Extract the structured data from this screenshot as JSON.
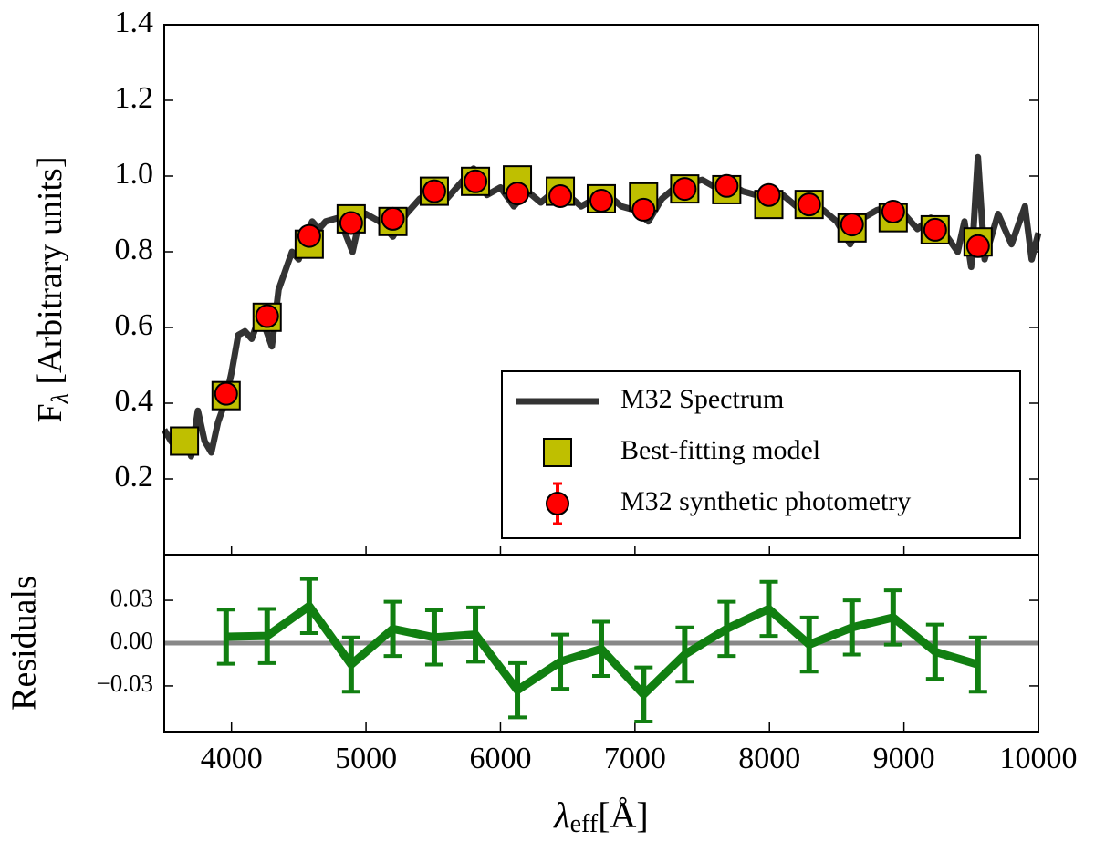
{
  "chart_data": [
    {
      "type": "combo",
      "ylabel_parts": [
        "F",
        "λ",
        " [Arbitrary units]"
      ],
      "xlim": [
        3500,
        10000
      ],
      "ylim": [
        0,
        1.4
      ],
      "yticks": [
        0.2,
        0.4,
        0.6,
        0.8,
        {
          "value": 1,
          "label": "1.0"
        },
        1.2,
        1.4
      ],
      "legend": "lower right",
      "series": [
        {
          "name": "M32 Spectrum",
          "color": "#333333",
          "kind": "line",
          "x": [
            3500,
            3550,
            3600,
            3650,
            3700,
            3750,
            3800,
            3850,
            3900,
            3950,
            4000,
            4050,
            4100,
            4150,
            4200,
            4250,
            4300,
            4350,
            4400,
            4450,
            4500,
            4550,
            4600,
            4650,
            4700,
            4800,
            4900,
            4950,
            5000,
            5100,
            5200,
            5300,
            5400,
            5500,
            5600,
            5700,
            5800,
            5900,
            6000,
            6100,
            6200,
            6300,
            6400,
            6500,
            6600,
            6700,
            6800,
            6900,
            7000,
            7100,
            7200,
            7300,
            7400,
            7500,
            7600,
            7700,
            7800,
            7900,
            8000,
            8100,
            8200,
            8300,
            8400,
            8500,
            8600,
            8700,
            8800,
            8900,
            9000,
            9100,
            9200,
            9300,
            9400,
            9450,
            9500,
            9550,
            9600,
            9700,
            9800,
            9900,
            9950,
            10000
          ],
          "values": [
            0.33,
            0.3,
            0.28,
            0.33,
            0.26,
            0.38,
            0.3,
            0.27,
            0.35,
            0.4,
            0.48,
            0.58,
            0.59,
            0.57,
            0.62,
            0.6,
            0.55,
            0.7,
            0.75,
            0.8,
            0.78,
            0.84,
            0.88,
            0.86,
            0.88,
            0.89,
            0.8,
            0.88,
            0.9,
            0.88,
            0.84,
            0.9,
            0.94,
            0.96,
            0.94,
            0.98,
            1.02,
            0.95,
            0.97,
            0.92,
            0.96,
            0.93,
            0.96,
            0.95,
            0.92,
            0.94,
            0.95,
            0.92,
            0.91,
            0.88,
            0.94,
            0.97,
            0.98,
            0.99,
            0.97,
            0.98,
            0.96,
            0.95,
            0.94,
            0.95,
            0.92,
            0.93,
            0.91,
            0.88,
            0.82,
            0.89,
            0.91,
            0.92,
            0.9,
            0.86,
            0.89,
            0.85,
            0.8,
            0.88,
            0.76,
            1.05,
            0.78,
            0.9,
            0.82,
            0.92,
            0.78,
            0.85
          ]
        },
        {
          "name": "Best-fitting model",
          "color": "#bfbf00",
          "kind": "square",
          "x": [
            3650,
            3960,
            4265,
            4578,
            4890,
            5200,
            5508,
            5814,
            6126,
            6445,
            6750,
            7064,
            7370,
            7682,
            7995,
            8295,
            8614,
            8920,
            9232,
            9551
          ],
          "values": [
            0.3,
            0.42,
            0.627,
            0.82,
            0.887,
            0.88,
            0.96,
            0.986,
            0.99,
            0.96,
            0.94,
            0.945,
            0.966,
            0.964,
            0.925,
            0.925,
            0.863,
            0.89,
            0.858,
            0.826
          ]
        },
        {
          "name": "M32 synthetic photometry",
          "color": "#ff0000",
          "kind": "circle",
          "x": [
            3960,
            4265,
            4578,
            4890,
            5200,
            5508,
            5814,
            6126,
            6445,
            6750,
            7064,
            7370,
            7682,
            7995,
            8295,
            8614,
            8920,
            9232,
            9551
          ],
          "values": [
            0.425,
            0.63,
            0.842,
            0.876,
            0.887,
            0.96,
            0.986,
            0.954,
            0.947,
            0.935,
            0.911,
            0.966,
            0.974,
            0.95,
            0.925,
            0.872,
            0.906,
            0.858,
            0.815
          ]
        }
      ]
    },
    {
      "type": "errorbar",
      "ylabel": "Residuals",
      "xlabel_parts": [
        "λ",
        "eff",
        "[Å]"
      ],
      "xlim": [
        3500,
        10000
      ],
      "xticks": [
        4000,
        5000,
        6000,
        7000,
        8000,
        9000,
        10000
      ],
      "ylim": [
        -0.062,
        0.062
      ],
      "yticks": [
        {
          "value": -0.03,
          "label": "−0.03"
        },
        {
          "value": 0,
          "label": "0.00"
        },
        {
          "value": 0.03,
          "label": "0.03"
        }
      ],
      "color": "#117f11",
      "x": [
        3960,
        4265,
        4578,
        4890,
        5200,
        5508,
        5814,
        6126,
        6445,
        6750,
        7064,
        7370,
        7682,
        7995,
        8295,
        8614,
        8920,
        9232,
        9551
      ],
      "values": [
        0.0045,
        0.005,
        0.026,
        -0.015,
        0.01,
        0.004,
        0.006,
        -0.033,
        -0.013,
        -0.004,
        -0.036,
        -0.008,
        0.01,
        0.024,
        -0.001,
        0.011,
        0.018,
        -0.006,
        -0.015
      ],
      "errors": [
        0.019,
        0.019,
        0.019,
        0.019,
        0.019,
        0.019,
        0.019,
        0.019,
        0.019,
        0.019,
        0.019,
        0.019,
        0.019,
        0.019,
        0.019,
        0.019,
        0.019,
        0.019,
        0.019
      ]
    }
  ]
}
